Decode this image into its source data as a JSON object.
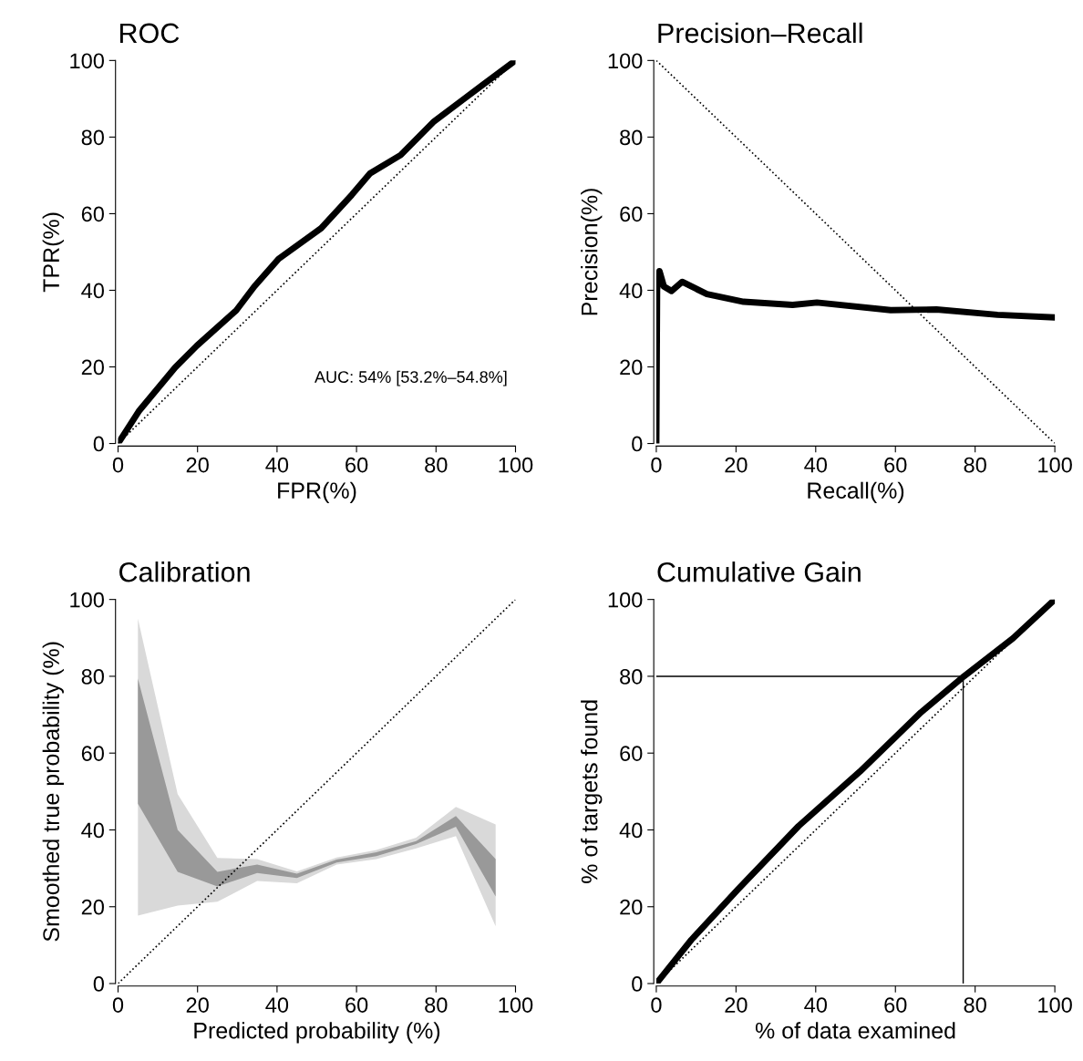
{
  "chart_data": [
    {
      "type": "line",
      "title": "ROC",
      "xlabel": "FPR(%)",
      "ylabel": "TPR(%)",
      "xlim": [
        0,
        100
      ],
      "ylim": [
        0,
        100
      ],
      "xticks": [
        0,
        20,
        40,
        60,
        80,
        100
      ],
      "yticks": [
        0,
        20,
        40,
        60,
        80,
        100
      ],
      "grid": false,
      "legend": false,
      "annotations": [
        "AUC: 54% [53.2%–54.8%]"
      ],
      "series": [
        {
          "color": "#000000",
          "line_style": "dotted",
          "x": [
            0,
            100
          ],
          "values": [
            0,
            100
          ]
        },
        {
          "color": "#000000",
          "line_style": "solid",
          "x": [
            0,
            5.2,
            14.4,
            19.8,
            29.7,
            34.3,
            40.4,
            51.1,
            58.8,
            63.4,
            71.1,
            79.5,
            91.7,
            100
          ],
          "values": [
            0,
            8.4,
            19.9,
            25.5,
            34.7,
            41.0,
            48.2,
            56.2,
            64.9,
            70.5,
            75.3,
            84.1,
            93.6,
            100
          ]
        }
      ]
    },
    {
      "type": "line",
      "title": "Precision–Recall",
      "xlabel": "Recall(%)",
      "ylabel": "Precision(%)",
      "xlim": [
        0,
        100
      ],
      "ylim": [
        0,
        100
      ],
      "xticks": [
        0,
        20,
        40,
        60,
        80,
        100
      ],
      "yticks": [
        0,
        20,
        40,
        60,
        80,
        100
      ],
      "grid": false,
      "legend": false,
      "series": [
        {
          "color": "#000000",
          "line_style": "dotted",
          "x": [
            0,
            100
          ],
          "values": [
            100,
            0
          ]
        },
        {
          "color": "#000000",
          "line_style": "solid",
          "x": [
            0,
            0.2,
            0.8,
            1.9,
            3.8,
            6.5,
            12.7,
            21.9,
            34.2,
            40.3,
            58.8,
            70.3,
            85.6,
            100
          ],
          "values": [
            0,
            40.2,
            45,
            41,
            39.8,
            42.2,
            39,
            37,
            36.2,
            36.8,
            34.8,
            35.0,
            33.6,
            32.9
          ]
        }
      ]
    },
    {
      "type": "line",
      "title": "Calibration",
      "xlabel": "Predicted probability (%)",
      "ylabel": "Smoothed true probability (%)",
      "xlim": [
        0,
        100
      ],
      "ylim": [
        0,
        100
      ],
      "xticks": [
        0,
        20,
        40,
        60,
        80,
        100
      ],
      "yticks": [
        0,
        20,
        40,
        60,
        80,
        100
      ],
      "grid": false,
      "legend": false,
      "series": [
        {
          "color": "#d9d9d9",
          "x": [
            5,
            15,
            25,
            35,
            45,
            55,
            65,
            75,
            85,
            95
          ],
          "values": [
            null,
            null,
            null,
            null,
            null,
            null,
            null,
            null,
            null,
            null
          ],
          "upper": [
            95.0,
            49.3,
            32.7,
            32.4,
            29.2,
            32.8,
            34.8,
            38.0,
            46.0,
            41.4
          ],
          "lower": [
            17.7,
            20.3,
            21.3,
            26.7,
            26.1,
            31.0,
            32.4,
            35.2,
            38.4,
            14.9
          ]
        },
        {
          "color": "#999999",
          "x": [
            5,
            15,
            25,
            35,
            45,
            55,
            65,
            75,
            85,
            95
          ],
          "values": [
            null,
            null,
            null,
            null,
            null,
            null,
            null,
            null,
            null,
            null
          ],
          "upper": [
            79.4,
            40.0,
            29.1,
            31.0,
            28.6,
            32.3,
            34.2,
            37.1,
            43.6,
            32.4
          ],
          "lower": [
            46.8,
            29.1,
            25.3,
            28.8,
            27.5,
            31.5,
            33.2,
            36.3,
            40.8,
            22.7
          ]
        },
        {
          "color": "#000000",
          "line_style": "dotted",
          "x": [
            0,
            100
          ],
          "values": [
            0,
            100
          ]
        }
      ]
    },
    {
      "type": "line",
      "title": "Cumulative Gain",
      "xlabel": "% of data examined",
      "ylabel": "% of targets found",
      "xlim": [
        0,
        100
      ],
      "ylim": [
        0,
        100
      ],
      "xticks": [
        0,
        20,
        40,
        60,
        80,
        100
      ],
      "yticks": [
        0,
        20,
        40,
        60,
        80,
        100
      ],
      "grid": false,
      "legend": false,
      "series": [
        {
          "color": "#000000",
          "line_style": "dotted",
          "x": [
            0,
            100
          ],
          "values": [
            0,
            100
          ]
        },
        {
          "color": "#000000",
          "line_style": "solid",
          "x": [
            0,
            77,
            77
          ],
          "values": [
            80,
            80,
            0
          ]
        },
        {
          "color": "#000000",
          "line_style": "solid",
          "x": [
            0,
            8.8,
            20.4,
            35.7,
            51.1,
            66.4,
            77.2,
            89.5,
            100
          ],
          "values": [
            0,
            11.4,
            24.4,
            41.0,
            55.2,
            70.6,
            80.0,
            89.9,
            100
          ]
        }
      ]
    }
  ]
}
